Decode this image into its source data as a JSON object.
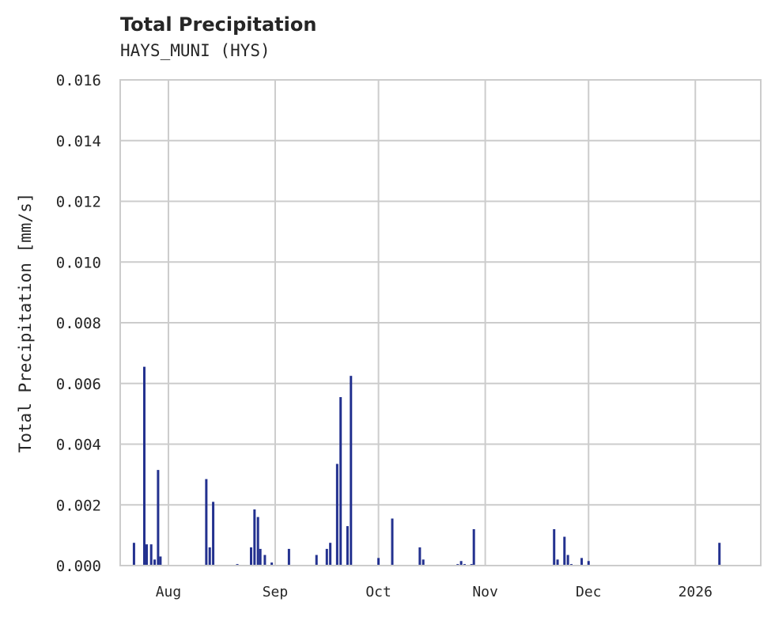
{
  "header": {
    "title": "Total Precipitation",
    "subtitle": "HAYS_MUNI (HYS)"
  },
  "colors": {
    "bar": "#23318f",
    "grid": "#cccccc",
    "axis": "#cccccc",
    "text": "#262626"
  },
  "chart_data": {
    "type": "bar",
    "title": "Total Precipitation",
    "subtitle": "HAYS_MUNI (HYS)",
    "xlabel": "",
    "ylabel": "Total Precipitation [mm/s]",
    "ylim": [
      0,
      0.016
    ],
    "yticks": [
      "0.000",
      "0.002",
      "0.004",
      "0.006",
      "0.008",
      "0.010",
      "0.012",
      "0.014",
      "0.016"
    ],
    "xticks": [
      "Aug",
      "Sep",
      "Oct",
      "Nov",
      "Dec",
      "2026"
    ],
    "grid": true,
    "x_range": [
      "2025-07-18",
      "2026-01-20"
    ],
    "series": [
      {
        "name": "Total Precipitation",
        "points": [
          {
            "date": "2025-07-22",
            "value": 0.00075
          },
          {
            "date": "2025-07-25",
            "value": 0.00655
          },
          {
            "date": "2025-07-25b",
            "value": 0.0007
          },
          {
            "date": "2025-07-27",
            "value": 0.0007
          },
          {
            "date": "2025-07-28",
            "value": 0.0002
          },
          {
            "date": "2025-07-29",
            "value": 0.00315
          },
          {
            "date": "2025-07-29b",
            "value": 0.0003
          },
          {
            "date": "2025-08-12",
            "value": 0.00285
          },
          {
            "date": "2025-08-13",
            "value": 0.0006
          },
          {
            "date": "2025-08-14",
            "value": 0.0021
          },
          {
            "date": "2025-08-21",
            "value": 5e-05
          },
          {
            "date": "2025-08-25",
            "value": 0.0006
          },
          {
            "date": "2025-08-26",
            "value": 0.00185
          },
          {
            "date": "2025-08-27",
            "value": 0.0016
          },
          {
            "date": "2025-08-27b",
            "value": 0.00055
          },
          {
            "date": "2025-08-29",
            "value": 0.00035
          },
          {
            "date": "2025-08-31",
            "value": 0.0001
          },
          {
            "date": "2025-09-05",
            "value": 0.00055
          },
          {
            "date": "2025-09-13",
            "value": 0.00035
          },
          {
            "date": "2025-09-16",
            "value": 0.00055
          },
          {
            "date": "2025-09-17",
            "value": 0.00075
          },
          {
            "date": "2025-09-19",
            "value": 0.00335
          },
          {
            "date": "2025-09-20",
            "value": 0.00555
          },
          {
            "date": "2025-09-22",
            "value": 0.0013
          },
          {
            "date": "2025-09-23",
            "value": 0.00625
          },
          {
            "date": "2025-10-01",
            "value": 0.00025
          },
          {
            "date": "2025-10-05",
            "value": 0.00155
          },
          {
            "date": "2025-10-13",
            "value": 0.0006
          },
          {
            "date": "2025-10-14",
            "value": 0.0002
          },
          {
            "date": "2025-10-24",
            "value": 5e-05
          },
          {
            "date": "2025-10-25",
            "value": 0.00015
          },
          {
            "date": "2025-10-26",
            "value": 5e-05
          },
          {
            "date": "2025-10-28",
            "value": 5e-05
          },
          {
            "date": "2025-10-28b",
            "value": 0.0012
          },
          {
            "date": "2025-11-21",
            "value": 0.0012
          },
          {
            "date": "2025-11-22",
            "value": 0.0002
          },
          {
            "date": "2025-11-24",
            "value": 0.00095
          },
          {
            "date": "2025-11-25",
            "value": 0.00035
          },
          {
            "date": "2025-11-26",
            "value": 5e-05
          },
          {
            "date": "2025-11-29",
            "value": 0.00025
          },
          {
            "date": "2025-12-01",
            "value": 0.00015
          },
          {
            "date": "2026-01-08",
            "value": 0.00075
          }
        ]
      }
    ]
  }
}
